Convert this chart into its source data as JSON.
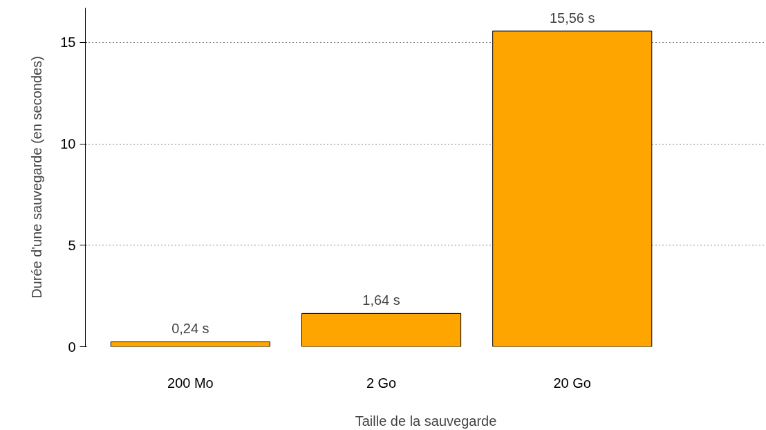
{
  "chart_data": {
    "type": "bar",
    "xlabel": "Taille de la sauvegarde",
    "ylabel": "Durée d'une sauvegarde (en secondes)",
    "categories": [
      "200 Mo",
      "2 Go",
      "20 Go"
    ],
    "values": [
      0.24,
      1.64,
      15.56
    ],
    "value_labels": [
      "0,24 s",
      "1,64 s",
      "15,56 s"
    ],
    "color": "#ffa500",
    "ylim": [
      0,
      16.7
    ],
    "yticks": [
      0,
      5,
      10,
      15
    ],
    "grid": "y"
  }
}
